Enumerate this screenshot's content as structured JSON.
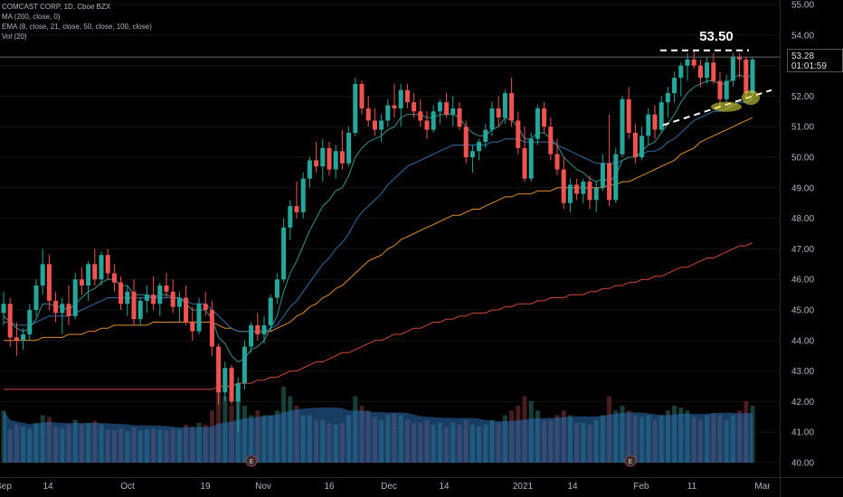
{
  "legend": {
    "symbol": "COMCAST CORP, 1D, Cboe BZX",
    "ma": "MA (200, close, 0)",
    "ema": "EMA (8, close, 21, close, 50, close, 100, close)",
    "vol": "Vol (20)"
  },
  "price_tag": {
    "price": "53.28",
    "countdown": "01:01:59"
  },
  "annotation": {
    "resistance_label": "53.50",
    "resistance_level": 53.5
  },
  "colors": {
    "up": "#26a69a",
    "down": "#ef5350",
    "background": "#000000",
    "ema8": "#3a8f8f",
    "ema21": "#2f6fa5",
    "ema50": "#e0902e",
    "ma200": "#d04a3a"
  },
  "chart_data": {
    "type": "candlestick",
    "y_axis": {
      "ticks": [
        "55.00",
        "54.00",
        "53.00",
        "52.00",
        "51.00",
        "50.00",
        "49.00",
        "48.00",
        "47.00",
        "46.00",
        "45.00",
        "44.00",
        "43.00",
        "42.00",
        "41.00",
        "40.00"
      ],
      "ylim": [
        40,
        55
      ]
    },
    "x_axis": {
      "ticks": [
        "Sep",
        "14",
        "Oct",
        "19",
        "Nov",
        "16",
        "Dec",
        "14",
        "2021",
        "14",
        "Feb",
        "11",
        "Mar"
      ]
    },
    "candles": [
      [
        44.9,
        45.6,
        44.5,
        45.2
      ],
      [
        45.2,
        45.4,
        43.8,
        44.1
      ],
      [
        44.1,
        44.6,
        43.5,
        44.0
      ],
      [
        44.0,
        44.4,
        43.7,
        44.2
      ],
      [
        44.2,
        45.2,
        44.0,
        45.0
      ],
      [
        45.0,
        46.0,
        44.8,
        45.8
      ],
      [
        45.8,
        47.0,
        45.5,
        46.5
      ],
      [
        46.5,
        46.8,
        45.0,
        45.3
      ],
      [
        45.3,
        45.6,
        44.6,
        44.9
      ],
      [
        44.9,
        45.4,
        44.2,
        45.2
      ],
      [
        45.2,
        45.8,
        44.5,
        44.8
      ],
      [
        44.8,
        46.2,
        44.7,
        46.0
      ],
      [
        46.0,
        46.4,
        45.5,
        45.8
      ],
      [
        45.8,
        46.6,
        45.3,
        46.5
      ],
      [
        46.5,
        47.0,
        45.8,
        46.0
      ],
      [
        46.0,
        46.9,
        45.8,
        46.8
      ],
      [
        46.8,
        47.0,
        46.0,
        46.2
      ],
      [
        46.2,
        46.5,
        45.6,
        45.9
      ],
      [
        45.9,
        46.1,
        45.0,
        45.2
      ],
      [
        45.2,
        45.8,
        44.8,
        45.6
      ],
      [
        45.6,
        46.0,
        44.5,
        44.7
      ],
      [
        44.7,
        45.4,
        44.5,
        45.3
      ],
      [
        45.3,
        45.8,
        44.9,
        45.5
      ],
      [
        45.5,
        46.1,
        45.0,
        45.2
      ],
      [
        45.2,
        45.9,
        44.8,
        45.8
      ],
      [
        45.8,
        46.2,
        45.4,
        45.6
      ],
      [
        45.6,
        46.0,
        44.9,
        45.1
      ],
      [
        45.1,
        45.6,
        44.6,
        45.4
      ],
      [
        45.4,
        45.8,
        44.5,
        44.6
      ],
      [
        44.6,
        45.1,
        44.0,
        44.3
      ],
      [
        44.3,
        45.4,
        44.2,
        45.2
      ],
      [
        45.2,
        45.6,
        44.8,
        45.0
      ],
      [
        45.0,
        45.3,
        43.5,
        43.8
      ],
      [
        43.8,
        43.9,
        41.9,
        42.3
      ],
      [
        42.3,
        43.3,
        42.0,
        43.1
      ],
      [
        43.1,
        43.2,
        41.9,
        42.0
      ],
      [
        42.0,
        42.8,
        41.0,
        42.6
      ],
      [
        42.6,
        44.0,
        42.4,
        43.8
      ],
      [
        43.8,
        44.6,
        43.6,
        44.5
      ],
      [
        44.5,
        44.9,
        44.0,
        44.2
      ],
      [
        44.2,
        44.8,
        43.9,
        44.5
      ],
      [
        44.5,
        45.5,
        44.3,
        45.4
      ],
      [
        45.4,
        46.2,
        45.2,
        46.0
      ],
      [
        46.0,
        48.0,
        45.9,
        47.7
      ],
      [
        47.7,
        48.6,
        47.3,
        48.4
      ],
      [
        48.4,
        49.2,
        48.0,
        48.2
      ],
      [
        48.2,
        49.5,
        48.0,
        49.3
      ],
      [
        49.3,
        50.0,
        49.0,
        49.9
      ],
      [
        49.9,
        50.5,
        49.5,
        49.7
      ],
      [
        49.7,
        50.6,
        49.2,
        50.3
      ],
      [
        50.3,
        50.5,
        49.4,
        49.6
      ],
      [
        49.6,
        50.4,
        49.3,
        50.2
      ],
      [
        50.2,
        50.9,
        49.6,
        49.8
      ],
      [
        49.8,
        51.0,
        49.7,
        50.8
      ],
      [
        50.8,
        52.6,
        50.7,
        52.4
      ],
      [
        52.4,
        52.5,
        51.4,
        51.6
      ],
      [
        51.6,
        52.0,
        51.0,
        51.2
      ],
      [
        51.2,
        51.6,
        50.7,
        50.9
      ],
      [
        50.9,
        51.4,
        50.5,
        51.2
      ],
      [
        51.2,
        51.9,
        51.0,
        51.7
      ],
      [
        51.7,
        52.4,
        51.3,
        51.6
      ],
      [
        51.6,
        52.4,
        51.0,
        52.2
      ],
      [
        52.2,
        52.4,
        51.6,
        51.8
      ],
      [
        51.8,
        52.1,
        51.3,
        51.5
      ],
      [
        51.5,
        51.9,
        51.0,
        51.2
      ],
      [
        51.2,
        51.5,
        50.6,
        50.9
      ],
      [
        50.9,
        51.7,
        50.8,
        51.5
      ],
      [
        51.5,
        51.9,
        51.1,
        51.8
      ],
      [
        51.8,
        52.1,
        51.3,
        51.4
      ],
      [
        51.4,
        52.0,
        51.0,
        51.6
      ],
      [
        51.6,
        51.8,
        50.9,
        51.0
      ],
      [
        51.0,
        51.2,
        49.8,
        50.0
      ],
      [
        50.0,
        50.4,
        49.5,
        50.2
      ],
      [
        50.2,
        50.6,
        49.9,
        50.5
      ],
      [
        50.5,
        51.1,
        50.3,
        50.9
      ],
      [
        50.9,
        51.8,
        50.7,
        51.6
      ],
      [
        51.6,
        52.0,
        51.0,
        51.3
      ],
      [
        51.3,
        52.2,
        51.1,
        52.1
      ],
      [
        52.1,
        52.6,
        51.0,
        51.2
      ],
      [
        51.2,
        51.5,
        50.1,
        50.3
      ],
      [
        50.3,
        51.0,
        49.2,
        49.3
      ],
      [
        49.3,
        50.8,
        49.2,
        50.6
      ],
      [
        50.6,
        51.7,
        50.4,
        51.6
      ],
      [
        51.6,
        51.8,
        50.8,
        51.0
      ],
      [
        51.0,
        51.3,
        49.9,
        50.1
      ],
      [
        50.1,
        50.6,
        49.4,
        49.6
      ],
      [
        49.6,
        50.0,
        48.3,
        48.5
      ],
      [
        48.5,
        49.3,
        48.2,
        49.1
      ],
      [
        49.1,
        49.3,
        48.6,
        48.8
      ],
      [
        48.8,
        49.3,
        48.5,
        49.2
      ],
      [
        49.2,
        49.4,
        48.3,
        48.6
      ],
      [
        48.6,
        49.2,
        48.2,
        49.0
      ],
      [
        49.0,
        50.1,
        48.9,
        49.8
      ],
      [
        49.8,
        51.4,
        48.4,
        48.6
      ],
      [
        48.6,
        50.3,
        48.5,
        50.1
      ],
      [
        50.1,
        52.0,
        50.0,
        51.9
      ],
      [
        51.9,
        52.3,
        50.6,
        50.8
      ],
      [
        50.8,
        51.1,
        49.8,
        50.0
      ],
      [
        50.0,
        51.0,
        49.9,
        50.7
      ],
      [
        50.7,
        51.6,
        50.4,
        51.4
      ],
      [
        51.4,
        51.7,
        50.6,
        50.9
      ],
      [
        50.9,
        52.0,
        50.8,
        51.8
      ],
      [
        51.8,
        52.3,
        51.3,
        52.1
      ],
      [
        52.1,
        52.8,
        51.8,
        52.6
      ],
      [
        52.6,
        53.1,
        52.0,
        53.0
      ],
      [
        53.0,
        53.4,
        52.5,
        53.2
      ],
      [
        53.2,
        53.5,
        52.9,
        53.0
      ],
      [
        53.0,
        53.2,
        52.3,
        52.6
      ],
      [
        52.6,
        53.3,
        52.4,
        53.1
      ],
      [
        53.1,
        53.4,
        52.4,
        52.5
      ],
      [
        52.5,
        52.8,
        51.7,
        51.9
      ],
      [
        51.9,
        52.7,
        51.8,
        52.5
      ],
      [
        52.5,
        53.4,
        52.3,
        53.3
      ],
      [
        53.3,
        53.4,
        52.6,
        53.2
      ],
      [
        53.2,
        53.3,
        51.9,
        52.1
      ],
      [
        52.1,
        53.3,
        52.0,
        53.2
      ]
    ],
    "ema8": [
      44.8,
      44.6,
      44.4,
      44.3,
      44.4,
      44.7,
      45.2,
      45.2,
      45.1,
      45.1,
      45.0,
      45.2,
      45.4,
      45.6,
      45.7,
      45.9,
      46.0,
      46.0,
      45.8,
      45.8,
      45.5,
      45.5,
      45.5,
      45.4,
      45.5,
      45.5,
      45.4,
      45.4,
      45.2,
      45.0,
      45.0,
      45.0,
      44.7,
      44.1,
      43.9,
      43.5,
      43.3,
      43.4,
      43.7,
      43.8,
      44.0,
      44.4,
      44.8,
      45.6,
      46.2,
      46.6,
      47.1,
      47.6,
      48.0,
      48.4,
      48.6,
      48.9,
      49.0,
      49.4,
      50.0,
      50.3,
      50.5,
      50.6,
      50.7,
      50.9,
      51.0,
      51.3,
      51.4,
      51.4,
      51.4,
      51.3,
      51.3,
      51.4,
      51.4,
      51.4,
      51.3,
      51.0,
      50.8,
      50.7,
      50.7,
      50.9,
      51.0,
      51.3,
      51.2,
      51.0,
      50.6,
      50.6,
      50.8,
      50.8,
      50.6,
      50.4,
      50.0,
      49.8,
      49.6,
      49.5,
      49.3,
      49.2,
      49.3,
      49.2,
      49.4,
      49.9,
      50.0,
      50.0,
      50.2,
      50.4,
      50.5,
      50.8,
      51.1,
      51.4,
      51.8,
      52.1,
      52.3,
      52.4,
      52.5,
      52.5,
      52.4,
      52.4,
      52.6,
      52.7,
      52.6,
      52.7
    ],
    "ema21": [
      44.6,
      44.6,
      44.5,
      44.5,
      44.5,
      44.6,
      44.7,
      44.8,
      44.8,
      44.8,
      44.8,
      44.9,
      45.0,
      45.1,
      45.2,
      45.3,
      45.4,
      45.4,
      45.4,
      45.4,
      45.4,
      45.4,
      45.4,
      45.4,
      45.4,
      45.4,
      45.4,
      45.4,
      45.3,
      45.2,
      45.2,
      45.2,
      45.0,
      44.8,
      44.6,
      44.4,
      44.3,
      44.3,
      44.3,
      44.3,
      44.3,
      44.4,
      44.5,
      44.8,
      45.1,
      45.3,
      45.6,
      45.9,
      46.2,
      46.5,
      46.7,
      47.0,
      47.2,
      47.5,
      47.9,
      48.2,
      48.4,
      48.6,
      48.8,
      49.1,
      49.3,
      49.5,
      49.7,
      49.8,
      49.9,
      50.0,
      50.1,
      50.2,
      50.3,
      50.4,
      50.4,
      50.4,
      50.4,
      50.4,
      50.4,
      50.5,
      50.5,
      50.6,
      50.6,
      50.6,
      50.5,
      50.5,
      50.5,
      50.5,
      50.5,
      50.4,
      50.3,
      50.2,
      50.1,
      50.0,
      49.9,
      49.8,
      49.8,
      49.8,
      49.8,
      49.9,
      50.0,
      50.0,
      50.1,
      50.2,
      50.2,
      50.3,
      50.5,
      50.6,
      50.8,
      51.0,
      51.2,
      51.3,
      51.4,
      51.5,
      51.5,
      51.6,
      51.7,
      51.8,
      51.8,
      51.9
    ],
    "ema50": [
      44.0,
      44.0,
      44.0,
      44.0,
      44.0,
      44.0,
      44.1,
      44.1,
      44.1,
      44.1,
      44.2,
      44.2,
      44.2,
      44.3,
      44.3,
      44.4,
      44.4,
      44.5,
      44.5,
      44.5,
      44.5,
      44.5,
      44.5,
      44.6,
      44.6,
      44.6,
      44.6,
      44.6,
      44.6,
      44.6,
      44.6,
      44.6,
      44.6,
      44.5,
      44.4,
      44.4,
      44.3,
      44.3,
      44.3,
      44.3,
      44.3,
      44.3,
      44.4,
      44.5,
      44.6,
      44.8,
      44.9,
      45.1,
      45.2,
      45.4,
      45.5,
      45.7,
      45.8,
      46.0,
      46.2,
      46.4,
      46.6,
      46.7,
      46.8,
      47.0,
      47.1,
      47.3,
      47.4,
      47.5,
      47.6,
      47.7,
      47.8,
      47.9,
      48.0,
      48.1,
      48.1,
      48.2,
      48.3,
      48.3,
      48.4,
      48.5,
      48.6,
      48.7,
      48.7,
      48.8,
      48.8,
      48.8,
      48.9,
      48.9,
      48.9,
      49.0,
      49.0,
      49.0,
      49.0,
      49.0,
      49.0,
      49.0,
      49.0,
      49.1,
      49.1,
      49.2,
      49.2,
      49.3,
      49.4,
      49.5,
      49.6,
      49.7,
      49.8,
      49.9,
      50.1,
      50.2,
      50.3,
      50.5,
      50.6,
      50.7,
      50.8,
      50.9,
      51.0,
      51.1,
      51.2,
      51.3
    ],
    "ma200": [
      42.4,
      42.4,
      42.4,
      42.4,
      42.4,
      42.4,
      42.4,
      42.4,
      42.4,
      42.4,
      42.4,
      42.4,
      42.4,
      42.4,
      42.4,
      42.4,
      42.4,
      42.4,
      42.4,
      42.4,
      42.4,
      42.4,
      42.4,
      42.4,
      42.4,
      42.4,
      42.4,
      42.4,
      42.4,
      42.4,
      42.4,
      42.4,
      42.4,
      42.5,
      42.5,
      42.5,
      42.6,
      42.6,
      42.6,
      42.7,
      42.7,
      42.8,
      42.8,
      42.9,
      43.0,
      43.0,
      43.1,
      43.2,
      43.3,
      43.3,
      43.4,
      43.5,
      43.6,
      43.6,
      43.7,
      43.8,
      43.9,
      44.0,
      44.0,
      44.1,
      44.2,
      44.2,
      44.3,
      44.4,
      44.4,
      44.5,
      44.6,
      44.6,
      44.7,
      44.7,
      44.8,
      44.8,
      44.9,
      44.9,
      44.9,
      45.0,
      45.0,
      45.1,
      45.1,
      45.2,
      45.2,
      45.2,
      45.3,
      45.3,
      45.4,
      45.4,
      45.4,
      45.5,
      45.5,
      45.5,
      45.6,
      45.6,
      45.7,
      45.7,
      45.8,
      45.8,
      45.9,
      45.9,
      46.0,
      46.0,
      46.1,
      46.1,
      46.2,
      46.3,
      46.4,
      46.4,
      46.5,
      46.6,
      46.7,
      46.7,
      46.8,
      46.9,
      47.0,
      47.1,
      47.1,
      47.2
    ],
    "volume": [
      0.55,
      0.35,
      0.4,
      0.38,
      0.36,
      0.42,
      0.5,
      0.48,
      0.38,
      0.36,
      0.4,
      0.45,
      0.4,
      0.42,
      0.44,
      0.4,
      0.35,
      0.34,
      0.36,
      0.33,
      0.37,
      0.34,
      0.35,
      0.36,
      0.35,
      0.34,
      0.36,
      0.35,
      0.4,
      0.38,
      0.42,
      0.4,
      0.55,
      1.0,
      0.7,
      0.6,
      0.75,
      0.6,
      0.5,
      0.55,
      0.5,
      0.5,
      0.55,
      0.8,
      0.7,
      0.6,
      0.5,
      0.5,
      0.45,
      0.45,
      0.42,
      0.4,
      0.42,
      0.5,
      0.7,
      0.6,
      0.55,
      0.48,
      0.45,
      0.5,
      0.52,
      0.5,
      0.45,
      0.42,
      0.42,
      0.45,
      0.4,
      0.42,
      0.38,
      0.42,
      0.4,
      0.45,
      0.4,
      0.38,
      0.4,
      0.45,
      0.42,
      0.5,
      0.55,
      0.6,
      0.7,
      0.65,
      0.55,
      0.45,
      0.45,
      0.5,
      0.55,
      0.5,
      0.42,
      0.42,
      0.4,
      0.45,
      0.5,
      0.7,
      0.55,
      0.6,
      0.55,
      0.5,
      0.48,
      0.5,
      0.45,
      0.5,
      0.55,
      0.6,
      0.58,
      0.55,
      0.48,
      0.45,
      0.5,
      0.52,
      0.5,
      0.45,
      0.5,
      0.55,
      0.65,
      0.6
    ]
  }
}
